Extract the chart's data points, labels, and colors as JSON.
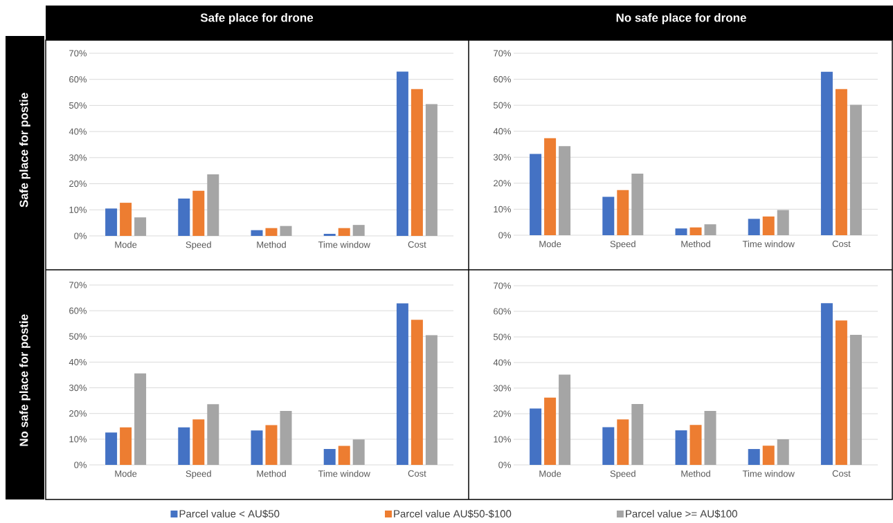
{
  "chart_data": [
    {
      "type": "bar",
      "title": "Safe place for drone",
      "ylabel": "Safe place for postie",
      "categories": [
        "Mode",
        "Speed",
        "Method",
        "Time window",
        "Cost"
      ],
      "series": [
        {
          "color": "#4472c4",
          "values": [
            10.5,
            14.3,
            2.2,
            0.8,
            63.0
          ]
        },
        {
          "color": "#ed7d31",
          "values": [
            12.7,
            17.3,
            3.0,
            3.0,
            56.3
          ]
        },
        {
          "color": "#a5a5a5",
          "values": [
            7.1,
            23.6,
            3.8,
            4.2,
            50.5
          ]
        }
      ],
      "ylim": [
        0,
        70
      ],
      "yticks": [
        {
          "value": 0,
          "label": "0%"
        },
        {
          "value": 10,
          "label": "10%"
        },
        {
          "value": 20,
          "label": "20%"
        },
        {
          "value": 30,
          "label": "30%"
        },
        {
          "value": 40,
          "label": "40%"
        },
        {
          "value": 50,
          "label": "50%"
        },
        {
          "value": 60,
          "label": "60%"
        },
        {
          "value": 70,
          "label": "70%"
        }
      ],
      "grid": "y"
    },
    {
      "type": "bar",
      "title": "No safe place for drone",
      "categories": [
        "Mode",
        "Speed",
        "Method",
        "Time window",
        "Cost"
      ],
      "series": [
        {
          "color": "#4472c4",
          "values": [
            31.3,
            14.8,
            2.6,
            6.3,
            62.9
          ]
        },
        {
          "color": "#ed7d31",
          "values": [
            37.3,
            17.4,
            3.0,
            7.2,
            56.2
          ]
        },
        {
          "color": "#a5a5a5",
          "values": [
            34.3,
            23.7,
            4.2,
            9.7,
            50.2
          ]
        }
      ],
      "ylim": [
        0,
        70
      ],
      "yticks": [
        {
          "value": 0,
          "label": "0%"
        },
        {
          "value": 10,
          "label": "10%"
        },
        {
          "value": 20,
          "label": "20%"
        },
        {
          "value": 30,
          "label": "30%"
        },
        {
          "value": 40,
          "label": "40%"
        },
        {
          "value": 50,
          "label": "50%"
        },
        {
          "value": 60,
          "label": "60%"
        },
        {
          "value": 70,
          "label": "70%"
        }
      ],
      "grid": "y"
    },
    {
      "type": "bar",
      "ylabel": "No safe place for postie",
      "categories": [
        "Mode",
        "Speed",
        "Method",
        "Time window",
        "Cost"
      ],
      "series": [
        {
          "name": "Parcel value < AU$50",
          "color": "#4472c4",
          "values": [
            12.6,
            14.6,
            13.4,
            6.2,
            62.9
          ]
        },
        {
          "name": "Parcel value AU$50-$100",
          "color": "#ed7d31",
          "values": [
            14.6,
            17.7,
            15.5,
            7.4,
            56.5
          ]
        },
        {
          "name": "Parcel value >= AU$100",
          "color": "#a5a5a5",
          "values": [
            35.6,
            23.6,
            21.0,
            9.9,
            50.5
          ]
        }
      ],
      "ylim": [
        0,
        70
      ],
      "yticks": [
        {
          "value": 0,
          "label": "0%"
        },
        {
          "value": 10,
          "label": "10%"
        },
        {
          "value": 20,
          "label": "20%"
        },
        {
          "value": 30,
          "label": "30%"
        },
        {
          "value": 40,
          "label": "40%"
        },
        {
          "value": 50,
          "label": "50%"
        },
        {
          "value": 60,
          "label": "60%"
        },
        {
          "value": 70,
          "label": "70%"
        }
      ],
      "grid": "y",
      "legend": "bottom"
    },
    {
      "type": "bar",
      "categories": [
        "Mode",
        "Speed",
        "Method",
        "Time window",
        "Cost"
      ],
      "series": [
        {
          "color": "#4472c4",
          "values": [
            22.0,
            14.7,
            13.5,
            6.2,
            63.2
          ]
        },
        {
          "color": "#ed7d31",
          "values": [
            26.3,
            17.8,
            15.6,
            7.5,
            56.4
          ]
        },
        {
          "color": "#a5a5a5",
          "values": [
            35.3,
            23.8,
            21.1,
            10.0,
            50.8
          ]
        }
      ],
      "ylim": [
        0,
        70
      ],
      "yticks": [
        {
          "value": 0,
          "label": "0%"
        },
        {
          "value": 10,
          "label": "10%"
        },
        {
          "value": 20,
          "label": "20%"
        },
        {
          "value": 30,
          "label": "30%"
        },
        {
          "value": 40,
          "label": "40%"
        },
        {
          "value": 50,
          "label": "50%"
        },
        {
          "value": 60,
          "label": "60%"
        },
        {
          "value": 70,
          "label": "70%"
        }
      ],
      "grid": "y"
    }
  ]
}
